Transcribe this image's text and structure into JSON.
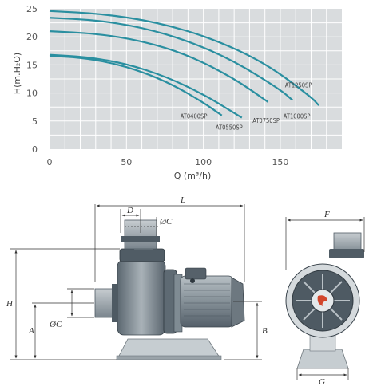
{
  "chart_data": {
    "type": "line",
    "xlabel": "Q (m³/h)",
    "ylabel": "H(m.H₂O)",
    "xlim": [
      0,
      190
    ],
    "ylim": [
      0,
      25
    ],
    "x_ticks": [
      "0",
      "50",
      "100",
      "150"
    ],
    "y_ticks": [
      "0",
      "5",
      "10",
      "15",
      "20",
      "25"
    ],
    "grid": true,
    "series": [
      {
        "name": "AT0400SP",
        "x": [
          0,
          20,
          40,
          60,
          80,
          100,
          112
        ],
        "y": [
          16.6,
          16.3,
          15.4,
          13.8,
          11.5,
          8.3,
          6.0
        ],
        "label_at": [
          85,
          5.5
        ]
      },
      {
        "name": "AT0550SP",
        "x": [
          0,
          25,
          50,
          75,
          100,
          125
        ],
        "y": [
          16.8,
          16.4,
          15.2,
          13.0,
          9.8,
          5.6
        ],
        "label_at": [
          108,
          3.5
        ]
      },
      {
        "name": "AT0750SP",
        "x": [
          0,
          30,
          60,
          90,
          120,
          142
        ],
        "y": [
          21.0,
          20.6,
          19.3,
          16.8,
          12.6,
          8.4
        ],
        "label_at": [
          132,
          4.7
        ]
      },
      {
        "name": "AT1000SP",
        "x": [
          0,
          30,
          60,
          90,
          120,
          150,
          158
        ],
        "y": [
          23.4,
          23.0,
          21.7,
          19.3,
          15.7,
          10.6,
          8.7
        ],
        "label_at": [
          152,
          5.5
        ]
      },
      {
        "name": "AT1250SP",
        "x": [
          0,
          35,
          70,
          105,
          140,
          170,
          175
        ],
        "y": [
          24.6,
          24.1,
          22.6,
          19.8,
          15.4,
          9.3,
          7.8
        ],
        "label_at": [
          153,
          11.0
        ]
      }
    ]
  },
  "drawing": {
    "dimensions": {
      "L": "L",
      "D": "D",
      "C_top": "ØC",
      "C_side": "ØC",
      "H": "H",
      "A": "A",
      "B": "B",
      "F": "F",
      "G": "G"
    },
    "colors": {
      "curve": "#2a8fa0",
      "grid_bg": "#d9dcde",
      "grid_line": "#ffffff",
      "pump_dark": "#4e5a63",
      "pump_mid": "#7f8b93",
      "pump_light": "#b9c1c6",
      "base": "#c6cdd1"
    }
  }
}
